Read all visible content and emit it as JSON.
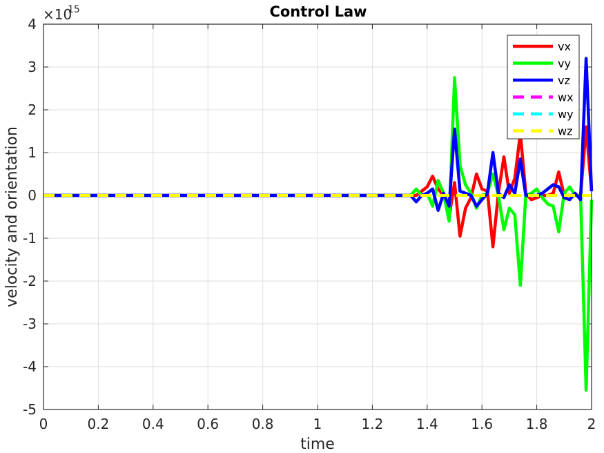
{
  "chart_data": {
    "type": "line",
    "title": "Control Law",
    "xlabel": "time",
    "ylabel": "velocity and orientation",
    "xlim": [
      0,
      2
    ],
    "ylim": [
      -5,
      4
    ],
    "y_exponent": "15",
    "x_ticks": [
      "0",
      "0.2",
      "0.4",
      "0.6",
      "0.8",
      "1",
      "1.2",
      "1.4",
      "1.6",
      "1.8",
      "2"
    ],
    "y_ticks": [
      "-5",
      "-4",
      "-3",
      "-2",
      "-1",
      "0",
      "1",
      "2",
      "3",
      "4"
    ],
    "grid": true,
    "legend_position": "top-right",
    "x": [
      0,
      1.34,
      1.36,
      1.38,
      1.4,
      1.42,
      1.44,
      1.46,
      1.48,
      1.5,
      1.52,
      1.54,
      1.56,
      1.58,
      1.6,
      1.62,
      1.64,
      1.66,
      1.68,
      1.7,
      1.72,
      1.74,
      1.76,
      1.78,
      1.8,
      1.82,
      1.84,
      1.86,
      1.88,
      1.9,
      1.92,
      1.94,
      1.96,
      1.98,
      2.0
    ],
    "series": [
      {
        "name": "vx",
        "color": "#ff0000",
        "dash": false,
        "values": [
          0,
          0,
          0,
          0.1,
          0.2,
          0.45,
          0.15,
          0,
          -0.5,
          0.3,
          -0.95,
          -0.3,
          -0.05,
          0.5,
          0.15,
          0.1,
          -1.2,
          0.05,
          0.9,
          0.05,
          0.4,
          1.45,
          0.05,
          -0.1,
          -0.05,
          0,
          0,
          0.05,
          0.55,
          0,
          0,
          0,
          0,
          1.6,
          0.1
        ]
      },
      {
        "name": "vy",
        "color": "#00ff00",
        "dash": false,
        "values": [
          0,
          0,
          0.15,
          0,
          0.05,
          -0.25,
          0.35,
          0.05,
          -0.6,
          2.75,
          0.7,
          0.25,
          0.05,
          -0.3,
          0,
          0.05,
          0.5,
          0,
          -0.8,
          -0.3,
          -0.45,
          -2.1,
          0,
          0.05,
          0.15,
          -0.05,
          -0.2,
          -0.25,
          -0.85,
          0.05,
          0.2,
          0,
          0,
          -4.55,
          -0.1
        ]
      },
      {
        "name": "vz",
        "color": "#0000ff",
        "dash": false,
        "values": [
          0,
          0,
          -0.15,
          0,
          0.05,
          0.15,
          -0.35,
          0.05,
          -0.25,
          1.55,
          0.1,
          0.05,
          0,
          -0.25,
          -0.1,
          0.05,
          1.0,
          0.05,
          -0.05,
          0.25,
          0.05,
          0.85,
          0,
          0,
          0,
          0.05,
          0.15,
          0.25,
          0.2,
          -0.05,
          -0.1,
          0.05,
          -0.1,
          3.2,
          0.1
        ]
      },
      {
        "name": "wx",
        "color": "#ff00ff",
        "dash": true,
        "values": [
          0,
          0,
          0,
          0,
          0,
          0,
          0,
          0,
          0,
          0,
          0,
          0,
          0,
          0,
          0,
          0,
          0,
          0,
          0,
          0,
          0,
          0,
          0,
          0,
          0,
          0,
          0,
          0,
          0,
          0,
          0,
          0,
          0,
          0,
          0
        ]
      },
      {
        "name": "wy",
        "color": "#00ffff",
        "dash": true,
        "values": [
          0,
          0,
          0,
          0,
          0,
          0,
          0,
          0,
          0,
          0,
          0,
          0,
          0,
          0,
          0,
          0,
          0,
          0,
          0,
          0,
          0,
          0,
          0,
          0,
          0,
          0,
          0,
          0,
          0,
          0,
          0,
          0,
          0,
          0,
          0
        ]
      },
      {
        "name": "wz",
        "color": "#ffff00",
        "dash": true,
        "values": [
          0,
          0,
          0,
          0,
          0,
          0,
          0,
          0,
          0,
          0,
          0,
          0,
          0,
          0,
          0,
          0,
          0,
          0,
          0,
          0,
          0,
          0,
          0,
          0,
          0,
          0,
          0,
          0,
          0,
          0,
          0,
          0,
          0,
          0,
          0
        ]
      }
    ]
  }
}
